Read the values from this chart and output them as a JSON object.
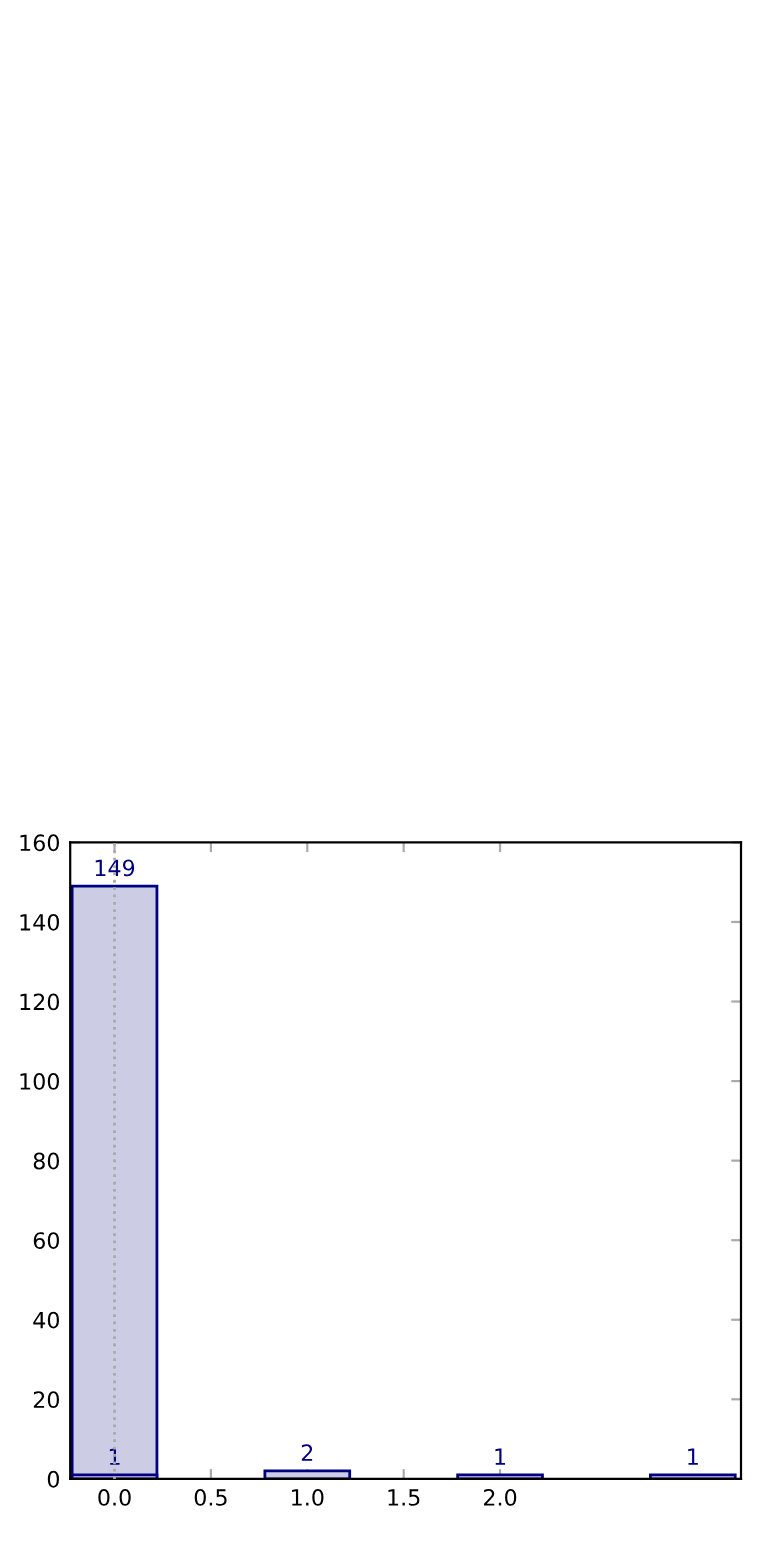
{
  "chart_data": {
    "type": "bar",
    "series": [
      {
        "x": [
          0
        ],
        "values": [
          149
        ],
        "color": "#ccccE4"
      },
      {
        "x": [
          0,
          1,
          2,
          3
        ],
        "values": [
          1,
          2,
          1,
          1
        ],
        "color": "#ccccE4"
      }
    ],
    "data_labels": true,
    "xlim": [
      -0.23,
      3.25
    ],
    "xticks": [
      {
        "value": 0,
        "label": "0.0"
      },
      {
        "value": 0.5,
        "label": "0.5"
      },
      {
        "value": 1,
        "label": "1.0"
      },
      {
        "value": 1.5,
        "label": "1.5"
      },
      {
        "value": 2,
        "label": "2.0"
      }
    ],
    "ylim": [
      0,
      160
    ],
    "yticks": [
      0,
      20,
      40,
      60,
      80,
      100,
      120,
      140,
      160
    ],
    "ref_lines": [
      {
        "axis": "x",
        "value": 0,
        "color": "#aaaaaa",
        "line_style": "dotted"
      }
    ],
    "grid": false,
    "legend": false
  }
}
